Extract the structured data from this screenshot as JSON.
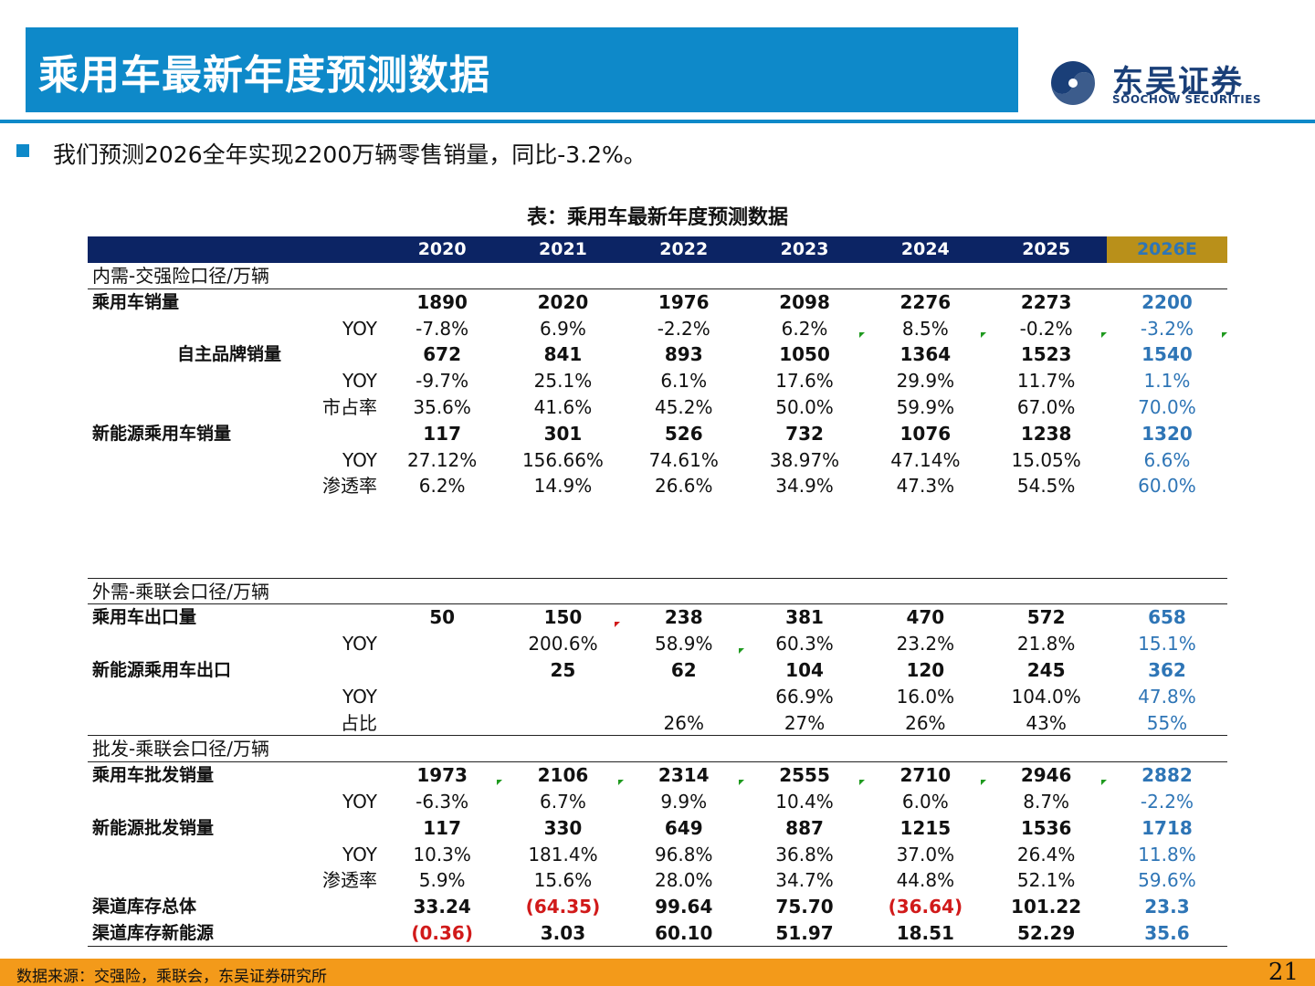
{
  "page": {
    "title": "乘用车最新年度预测数据",
    "logo_cn": "东吴证券",
    "logo_en": "SOOCHOW SECURITIES",
    "bullet": "我们预测2026全年实现2200万辆零售销量，同比-3.2%。",
    "table_caption": "表：乘用车最新年度预测数据",
    "footer_source": "数据来源：交强险，乘联会，东吴证券研究所",
    "page_number": "21"
  },
  "table": {
    "years": [
      "2020",
      "2021",
      "2022",
      "2023",
      "2024",
      "2025",
      "2026E"
    ],
    "rows": [
      {
        "kind": "section",
        "label": "内需-交强险口径/万辆",
        "values": [],
        "line": "below"
      },
      {
        "kind": "main",
        "label": "乘用车销量",
        "values": [
          "1890",
          "2020",
          "1976",
          "2098",
          "2276",
          "2273",
          "2200"
        ]
      },
      {
        "kind": "sub",
        "label": "YOY",
        "values": [
          "-7.8%",
          "6.9%",
          "-2.2%",
          "6.2%",
          "8.5%",
          "-0.2%",
          "-3.2%"
        ]
      },
      {
        "kind": "main",
        "indent": true,
        "label": "自主品牌销量",
        "values": [
          "672",
          "841",
          "893",
          "1050",
          "1364",
          "1523",
          "1540"
        ],
        "marks": [
          4,
          5,
          6,
          7
        ]
      },
      {
        "kind": "sub",
        "label": "YOY",
        "values": [
          "-9.7%",
          "25.1%",
          "6.1%",
          "17.6%",
          "29.9%",
          "11.7%",
          "1.1%"
        ]
      },
      {
        "kind": "sub",
        "label": "市占率",
        "values": [
          "35.6%",
          "41.6%",
          "45.2%",
          "50.0%",
          "59.9%",
          "67.0%",
          "70.0%"
        ]
      },
      {
        "kind": "main",
        "label": "新能源乘用车销量",
        "values": [
          "117",
          "301",
          "526",
          "732",
          "1076",
          "1238",
          "1320"
        ]
      },
      {
        "kind": "sub",
        "label": "YOY",
        "values": [
          "27.12%",
          "156.66%",
          "74.61%",
          "38.97%",
          "47.14%",
          "15.05%",
          "6.6%"
        ]
      },
      {
        "kind": "sub",
        "label": "渗透率",
        "values": [
          "6.2%",
          "14.9%",
          "26.6%",
          "34.9%",
          "47.3%",
          "54.5%",
          "60.0%"
        ]
      },
      {
        "kind": "blank"
      },
      {
        "kind": "blank"
      },
      {
        "kind": "blank"
      },
      {
        "kind": "section",
        "label": "外需-乘联会口径/万辆",
        "values": [],
        "line": "both"
      },
      {
        "kind": "main",
        "label": "乘用车出口量",
        "values": [
          "50",
          "150",
          "238",
          "381",
          "470",
          "572",
          "658"
        ]
      },
      {
        "kind": "sub",
        "label": "YOY",
        "values": [
          "",
          "200.6%",
          "58.9%",
          "60.3%",
          "23.2%",
          "21.8%",
          "15.1%"
        ],
        "redmarks": [
          2
        ]
      },
      {
        "kind": "main",
        "label": "新能源乘用车出口",
        "values": [
          "",
          "25",
          "62",
          "104",
          "120",
          "245",
          "362"
        ],
        "marks": [
          3
        ]
      },
      {
        "kind": "sub",
        "label": "YOY",
        "values": [
          "",
          "",
          "",
          "66.9%",
          "16.0%",
          "104.0%",
          "47.8%"
        ]
      },
      {
        "kind": "sub",
        "label": "占比",
        "values": [
          "",
          "",
          "26%",
          "27%",
          "26%",
          "43%",
          "55%"
        ]
      },
      {
        "kind": "section",
        "label": "批发-乘联会口径/万辆",
        "values": [],
        "line": "both"
      },
      {
        "kind": "main",
        "label": "乘用车批发销量",
        "values": [
          "1973",
          "2106",
          "2314",
          "2555",
          "2710",
          "2946",
          "2882"
        ]
      },
      {
        "kind": "sub",
        "label": "YOY",
        "values": [
          "-6.3%",
          "6.7%",
          "9.9%",
          "10.4%",
          "6.0%",
          "8.7%",
          "-2.2%"
        ],
        "marks": [
          1,
          2,
          3,
          4,
          5,
          6
        ]
      },
      {
        "kind": "main",
        "label": "新能源批发销量",
        "values": [
          "117",
          "330",
          "649",
          "887",
          "1215",
          "1536",
          "1718"
        ]
      },
      {
        "kind": "sub",
        "label": "YOY",
        "values": [
          "10.3%",
          "181.4%",
          "96.8%",
          "36.8%",
          "37.0%",
          "26.4%",
          "11.8%"
        ]
      },
      {
        "kind": "sub",
        "label": "渗透率",
        "values": [
          "5.9%",
          "15.6%",
          "28.0%",
          "34.7%",
          "44.8%",
          "52.1%",
          "59.6%"
        ]
      },
      {
        "kind": "main",
        "label": "渠道库存总体",
        "values": [
          "33.24",
          "(64.35)",
          "99.64",
          "75.70",
          "(36.64)",
          "101.22",
          "23.3"
        ]
      },
      {
        "kind": "main",
        "label": "渠道库存新能源",
        "values": [
          "(0.36)",
          "3.03",
          "60.10",
          "51.97",
          "18.51",
          "52.29",
          "35.6"
        ],
        "line": "below"
      }
    ]
  }
}
